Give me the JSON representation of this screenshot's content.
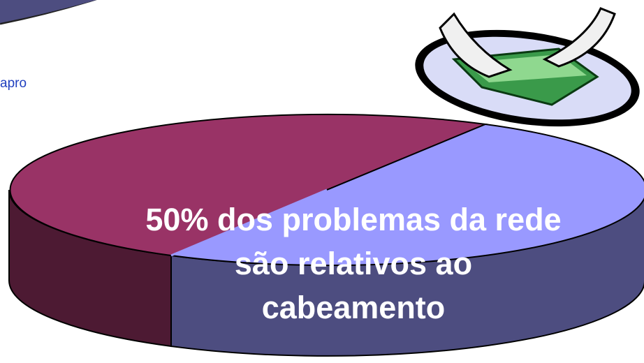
{
  "side_text": "apro",
  "headline": {
    "lines": [
      "50% dos problemas da rede",
      "são relativos ao",
      "cabeamento"
    ]
  }
}
